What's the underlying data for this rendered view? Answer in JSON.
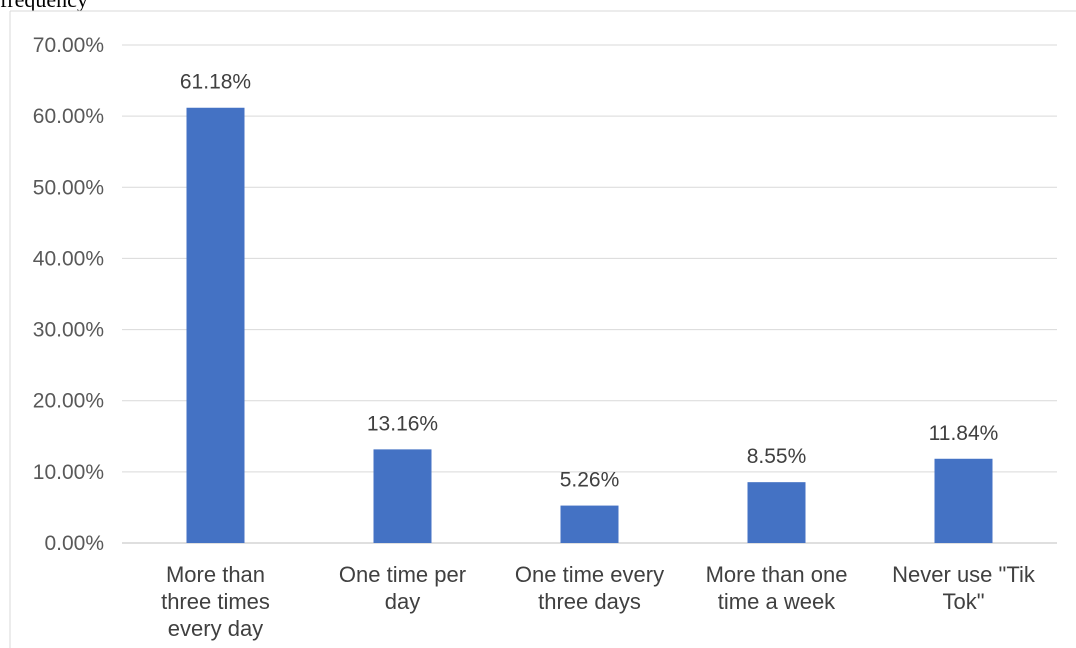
{
  "caption_fragment": "frequency",
  "colors": {
    "bar": "#4472c4",
    "grid": "#d9d9d9",
    "text": "#595959"
  },
  "chart_data": {
    "type": "bar",
    "categories": [
      [
        "More than",
        "three times",
        "every day"
      ],
      [
        "One time per",
        "day"
      ],
      [
        "One time every",
        "three days"
      ],
      [
        "More than one",
        "time a week"
      ],
      [
        "Never use \"Tik",
        "Tok\""
      ]
    ],
    "values": [
      61.18,
      13.16,
      5.26,
      8.55,
      11.84
    ],
    "data_labels": [
      "61.18%",
      "13.16%",
      "5.26%",
      "8.55%",
      "11.84%"
    ],
    "y_ticks": [
      "0.00%",
      "10.00%",
      "20.00%",
      "30.00%",
      "40.00%",
      "50.00%",
      "60.00%",
      "70.00%"
    ],
    "ylim": [
      0,
      70
    ],
    "title": "",
    "xlabel": "",
    "ylabel": "",
    "grid": true,
    "legend": "none"
  }
}
